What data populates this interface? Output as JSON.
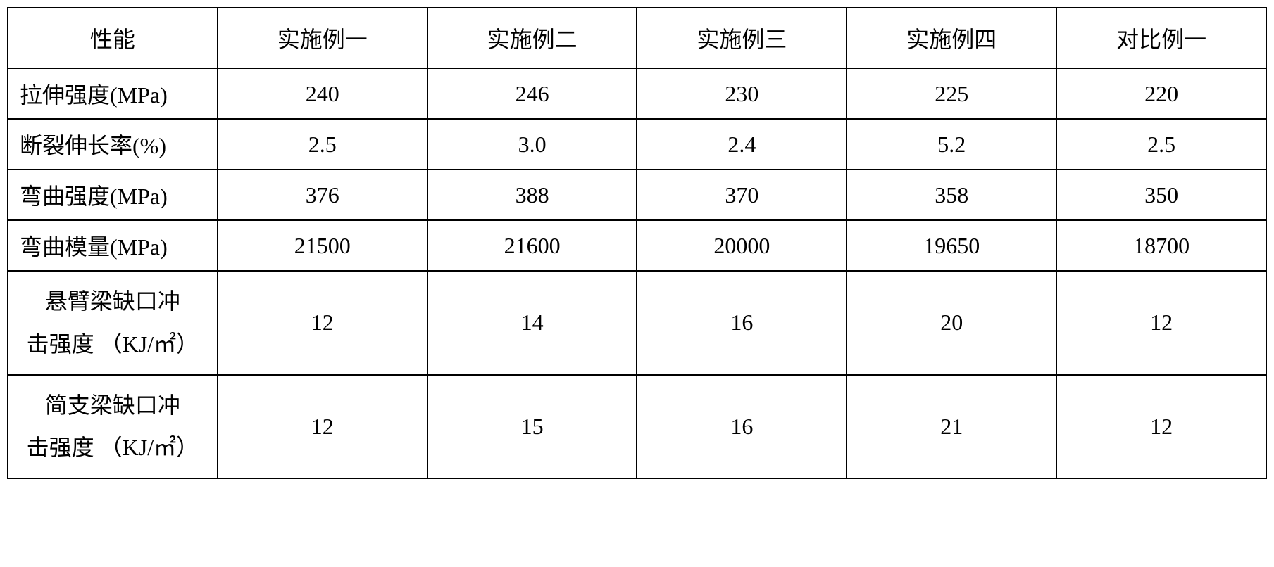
{
  "table": {
    "columns": [
      "性能",
      "实施例一",
      "实施例二",
      "实施例三",
      "实施例四",
      "对比例一"
    ],
    "rows": [
      {
        "label": "拉伸强度(MPa)",
        "label_multiline": false,
        "values": [
          "240",
          "246",
          "230",
          "225",
          "220"
        ]
      },
      {
        "label": "断裂伸长率(%)",
        "label_multiline": false,
        "values": [
          "2.5",
          "3.0",
          "2.4",
          "5.2",
          "2.5"
        ]
      },
      {
        "label": "弯曲强度(MPa)",
        "label_multiline": false,
        "values": [
          "376",
          "388",
          "370",
          "358",
          "350"
        ]
      },
      {
        "label": "弯曲模量(MPa)",
        "label_multiline": false,
        "values": [
          "21500",
          "21600",
          "20000",
          "19650",
          "18700"
        ]
      },
      {
        "label": "悬臂梁缺口冲击强度 （KJ/㎡）",
        "label_line1": "悬臂梁缺口冲",
        "label_line2": "击强度 （KJ/㎡）",
        "label_multiline": true,
        "values": [
          "12",
          "14",
          "16",
          "20",
          "12"
        ]
      },
      {
        "label": "简支梁缺口冲击强度 （KJ/㎡）",
        "label_line1": "简支梁缺口冲",
        "label_line2": "击强度 （KJ/㎡）",
        "label_multiline": true,
        "values": [
          "12",
          "15",
          "16",
          "21",
          "12"
        ]
      }
    ],
    "border_color": "#000000",
    "background_color": "#ffffff",
    "text_color": "#000000",
    "font_size": 32,
    "font_family": "SimSun"
  }
}
